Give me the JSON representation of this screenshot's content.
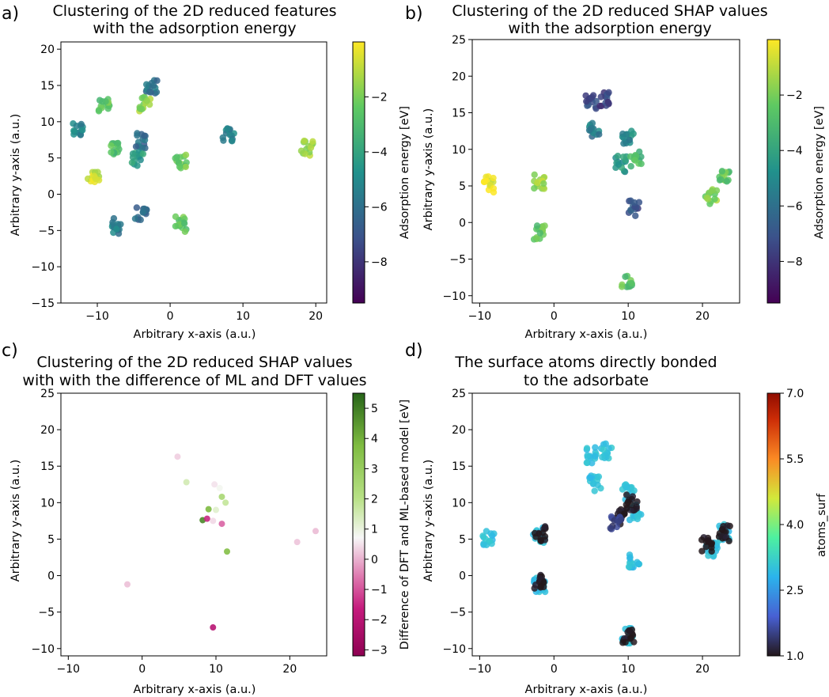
{
  "chart_data": [
    {
      "panel": "a)",
      "type": "scatter",
      "title": [
        "Clustering of the 2D reduced features",
        "with the adsorption energy"
      ],
      "xlabel": "Arbitrary x-axis (a.u.)",
      "ylabel": "Arbitrary y-axis (a.u.)",
      "xlim": [
        -15,
        21.5
      ],
      "ylim": [
        -15,
        21
      ],
      "xticks": [
        -10,
        0,
        10,
        20
      ],
      "yticks": [
        -15,
        -10,
        -5,
        0,
        5,
        10,
        15,
        20
      ],
      "colorbar": {
        "label": "Adsorption energy [eV]",
        "range": [
          -9.5,
          0
        ],
        "ticks": [
          -2,
          -4,
          -6,
          -8
        ],
        "tick_labels": [
          "−2",
          "−4",
          "−6",
          "−8"
        ],
        "colormap": "viridis"
      },
      "clusters": [
        {
          "x": -12.8,
          "y": 8.9,
          "energy": -5.2
        },
        {
          "x": -10.5,
          "y": 2.6,
          "energy": -0.6
        },
        {
          "x": -9.0,
          "y": 12.0,
          "energy": -2.6
        },
        {
          "x": -7.5,
          "y": 6.6,
          "energy": -2.9
        },
        {
          "x": -7.5,
          "y": -4.4,
          "energy": -5.5
        },
        {
          "x": -4.2,
          "y": 7.4,
          "energy": -6.2
        },
        {
          "x": -4.5,
          "y": 4.9,
          "energy": -4.2
        },
        {
          "x": -4.0,
          "y": -2.5,
          "energy": -6.5
        },
        {
          "x": -3.5,
          "y": 12.5,
          "energy": -1.5
        },
        {
          "x": -2.5,
          "y": 15.0,
          "energy": -6.0
        },
        {
          "x": 1.5,
          "y": 4.4,
          "energy": -2.3
        },
        {
          "x": 1.5,
          "y": -4.1,
          "energy": -2.2
        },
        {
          "x": 8.0,
          "y": 8.2,
          "energy": -5.3
        },
        {
          "x": 18.8,
          "y": 6.4,
          "energy": -1.5
        }
      ]
    },
    {
      "panel": "b)",
      "type": "scatter",
      "title": [
        "Clustering of the 2D reduced SHAP values",
        "with the adsorption energy"
      ],
      "xlabel": "Arbitrary x-axis (a.u.)",
      "ylabel": "Arbitrary y-axis (a.u.)",
      "xlim": [
        -11,
        25
      ],
      "ylim": [
        -11,
        25
      ],
      "xticks": [
        -10,
        0,
        10,
        20
      ],
      "yticks": [
        -10,
        -5,
        0,
        5,
        10,
        15,
        20,
        25
      ],
      "colorbar": {
        "label": "Adsorption energy [eV]",
        "range": [
          -9.5,
          0
        ],
        "ticks": [
          -2,
          -4,
          -6,
          -8
        ],
        "tick_labels": [
          "−2",
          "−4",
          "−6",
          "−8"
        ],
        "colormap": "viridis"
      },
      "clusters": [
        {
          "x": -8.8,
          "y": 5.2,
          "energy": -0.5
        },
        {
          "x": -2.0,
          "y": 5.6,
          "energy": -1.5
        },
        {
          "x": -1.9,
          "y": -1.2,
          "energy": -2.5
        },
        {
          "x": 5.0,
          "y": 16.5,
          "energy": -7.0
        },
        {
          "x": 7.0,
          "y": 17.0,
          "energy": -7.5
        },
        {
          "x": 5.5,
          "y": 12.7,
          "energy": -5.5
        },
        {
          "x": 10.0,
          "y": 11.5,
          "energy": -5.0
        },
        {
          "x": 9.0,
          "y": 8.0,
          "energy": -4.5
        },
        {
          "x": 11.0,
          "y": 8.7,
          "energy": -3.0
        },
        {
          "x": 10.8,
          "y": 2.0,
          "energy": -7.0
        },
        {
          "x": 9.8,
          "y": -8.2,
          "energy": -2.5
        },
        {
          "x": 21.2,
          "y": 3.5,
          "energy": -1.8
        },
        {
          "x": 23.0,
          "y": 6.0,
          "energy": -2.5
        }
      ]
    },
    {
      "panel": "c)",
      "type": "scatter",
      "title": [
        "Clustering of the 2D reduced SHAP values",
        "with with the difference of ML and DFT values"
      ],
      "xlabel": "Arbitrary x-axis (a.u.)",
      "ylabel": "Arbitrary y-axis (a.u.)",
      "xlim": [
        -11,
        25
      ],
      "ylim": [
        -11,
        25
      ],
      "xticks": [
        -10,
        0,
        10,
        20
      ],
      "yticks": [
        -10,
        -5,
        0,
        5,
        10,
        15,
        20,
        25
      ],
      "colorbar": {
        "label": "Difference of DFT and ML-based model [eV]",
        "range": [
          -3.2,
          5.5
        ],
        "ticks": [
          5,
          4,
          3,
          2,
          1,
          0,
          -1,
          -2,
          -3
        ],
        "tick_labels": [
          "5",
          "4",
          "3",
          "2",
          "1",
          "0",
          "−1",
          "−2",
          "−3"
        ],
        "colormap": "PiYG"
      },
      "points": [
        {
          "x": 4.8,
          "y": 16.3,
          "diff": 0.3
        },
        {
          "x": 6.0,
          "y": 12.8,
          "diff": 1.5
        },
        {
          "x": 9.8,
          "y": 12.5,
          "diff": 0.5
        },
        {
          "x": 10.5,
          "y": 12.0,
          "diff": 0.8
        },
        {
          "x": 10.8,
          "y": 10.8,
          "diff": 2.5
        },
        {
          "x": 11.3,
          "y": 10.0,
          "diff": 1.8
        },
        {
          "x": 9.0,
          "y": 9.1,
          "diff": 3.8
        },
        {
          "x": 10.0,
          "y": 9.0,
          "diff": 1.2
        },
        {
          "x": 8.2,
          "y": 7.6,
          "diff": 4.8
        },
        {
          "x": 8.8,
          "y": 7.8,
          "diff": -1.5
        },
        {
          "x": 9.6,
          "y": 7.5,
          "diff": 0.4
        },
        {
          "x": 10.8,
          "y": 7.1,
          "diff": -0.8
        },
        {
          "x": 11.5,
          "y": 3.3,
          "diff": 3.6
        },
        {
          "x": 9.6,
          "y": -7.1,
          "diff": -2.0
        },
        {
          "x": 21.0,
          "y": 4.6,
          "diff": 0.2
        },
        {
          "x": 23.5,
          "y": 6.1,
          "diff": 0.1
        },
        {
          "x": -2.0,
          "y": -1.2,
          "diff": 0.15
        }
      ]
    },
    {
      "panel": "d)",
      "type": "scatter",
      "title": [
        "The surface atoms directly bonded",
        "to the adsorbate"
      ],
      "xlabel": "Arbitrary x-axis (a.u.)",
      "ylabel": "Arbitrary y-axis (a.u.)",
      "xlim": [
        -11,
        25
      ],
      "ylim": [
        -11,
        25
      ],
      "xticks": [
        -10,
        0,
        10,
        20
      ],
      "yticks": [
        -10,
        -5,
        0,
        5,
        10,
        15,
        20,
        25
      ],
      "colorbar": {
        "label": "atoms_surf",
        "range": [
          1.0,
          7.0
        ],
        "ticks": [
          7.0,
          5.5,
          4.0,
          2.5,
          1.0
        ],
        "tick_labels": [
          "7.0",
          "5.5",
          "4.0",
          "2.5",
          "1.0"
        ],
        "colormap": "turbo"
      },
      "clusters": [
        {
          "x": -8.8,
          "y": 5.2,
          "atoms": 3.0
        },
        {
          "x": -2.0,
          "y": 5.6,
          "atoms": 3.0
        },
        {
          "x": -1.9,
          "y": -1.2,
          "atoms": 3.0
        },
        {
          "x": 5.0,
          "y": 16.5,
          "atoms": 3.0
        },
        {
          "x": 7.0,
          "y": 17.0,
          "atoms": 3.0
        },
        {
          "x": 5.5,
          "y": 12.7,
          "atoms": 3.0
        },
        {
          "x": 10.0,
          "y": 11.5,
          "atoms": 3.0
        },
        {
          "x": 9.0,
          "y": 8.0,
          "atoms": 1.0
        },
        {
          "x": 11.0,
          "y": 8.7,
          "atoms": 3.0
        },
        {
          "x": 10.8,
          "y": 2.0,
          "atoms": 3.0
        },
        {
          "x": 9.8,
          "y": -8.2,
          "atoms": 3.0
        },
        {
          "x": 21.2,
          "y": 3.5,
          "atoms": 3.0
        },
        {
          "x": 23.0,
          "y": 6.0,
          "atoms": 3.0
        },
        {
          "x": 20.5,
          "y": 4.2,
          "atoms": 1.0
        },
        {
          "x": 10.5,
          "y": 10.0,
          "atoms": 1.0
        },
        {
          "x": 23.0,
          "y": 5.8,
          "atoms": 1.0
        },
        {
          "x": -1.9,
          "y": -0.9,
          "atoms": 1.0
        },
        {
          "x": -1.8,
          "y": 5.8,
          "atoms": 1.0
        },
        {
          "x": 10.0,
          "y": -8.5,
          "atoms": 1.0
        },
        {
          "x": 8.4,
          "y": 7.3,
          "atoms": 1.5
        }
      ]
    }
  ]
}
